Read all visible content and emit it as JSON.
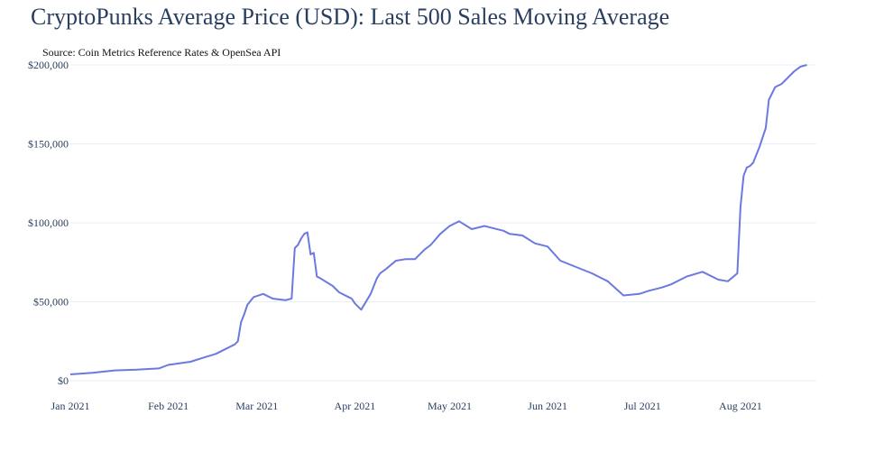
{
  "colors": {
    "line": "#6d78e0",
    "grid": "#ebeef3",
    "text": "#2a3f5f"
  },
  "chart_data": {
    "type": "line",
    "title": "CryptoPunks Average Price (USD): Last 500 Sales Moving Average",
    "subtitle": "Source: Coin Metrics Reference Rates & OpenSea API",
    "xlabel": "",
    "ylabel": "",
    "x_range": [
      "2021-01-01",
      "2021-08-25"
    ],
    "ylim": [
      0,
      200000
    ],
    "y_ticks": [
      0,
      50000,
      100000,
      150000,
      200000
    ],
    "y_tick_labels": [
      "$0",
      "$50,000",
      "$100,000",
      "$150,000",
      "$200,000"
    ],
    "x_ticks": [
      "2021-01-01",
      "2021-02-01",
      "2021-03-01",
      "2021-04-01",
      "2021-05-01",
      "2021-06-01",
      "2021-07-01",
      "2021-08-01"
    ],
    "x_tick_labels": [
      "Jan 2021",
      "Feb 2021",
      "Mar 2021",
      "Apr 2021",
      "May 2021",
      "Jun 2021",
      "Jul 2021",
      "Aug 2021"
    ],
    "grid": true,
    "legend": false,
    "series": [
      {
        "x": [
          "2021-01-01",
          "2021-01-08",
          "2021-01-15",
          "2021-01-22",
          "2021-01-29",
          "2021-02-01",
          "2021-02-08",
          "2021-02-12",
          "2021-02-16",
          "2021-02-20",
          "2021-02-22",
          "2021-02-23",
          "2021-02-24",
          "2021-02-25",
          "2021-02-26",
          "2021-02-28",
          "2021-03-03",
          "2021-03-06",
          "2021-03-10",
          "2021-03-12",
          "2021-03-13",
          "2021-03-14",
          "2021-03-15",
          "2021-03-16",
          "2021-03-17",
          "2021-03-18",
          "2021-03-19",
          "2021-03-20",
          "2021-03-21",
          "2021-03-25",
          "2021-03-27",
          "2021-03-30",
          "2021-03-31",
          "2021-04-01",
          "2021-04-03",
          "2021-04-06",
          "2021-04-08",
          "2021-04-09",
          "2021-04-11",
          "2021-04-14",
          "2021-04-17",
          "2021-04-20",
          "2021-04-23",
          "2021-04-25",
          "2021-04-28",
          "2021-05-01",
          "2021-05-04",
          "2021-05-08",
          "2021-05-12",
          "2021-05-14",
          "2021-05-18",
          "2021-05-20",
          "2021-05-24",
          "2021-05-28",
          "2021-06-01",
          "2021-06-05",
          "2021-06-10",
          "2021-06-15",
          "2021-06-20",
          "2021-06-25",
          "2021-06-30",
          "2021-07-03",
          "2021-07-07",
          "2021-07-10",
          "2021-07-15",
          "2021-07-20",
          "2021-07-25",
          "2021-07-28",
          "2021-07-31",
          "2021-08-01",
          "2021-08-02",
          "2021-08-03",
          "2021-08-04",
          "2021-08-05",
          "2021-08-07",
          "2021-08-09",
          "2021-08-10",
          "2021-08-12",
          "2021-08-14",
          "2021-08-16",
          "2021-08-18",
          "2021-08-20",
          "2021-08-22"
        ],
        "values": [
          4000,
          5000,
          6500,
          7000,
          7800,
          10000,
          12000,
          14500,
          17000,
          21000,
          23000,
          25000,
          37000,
          42000,
          48000,
          53000,
          55000,
          52000,
          51000,
          52000,
          84000,
          86000,
          90000,
          93000,
          94000,
          80000,
          81000,
          66000,
          65000,
          60000,
          56000,
          53000,
          52000,
          49000,
          45000,
          55000,
          65000,
          68000,
          71000,
          76000,
          77000,
          77000,
          83000,
          86000,
          93000,
          98000,
          101000,
          96000,
          98000,
          97000,
          95000,
          93000,
          92000,
          87000,
          85000,
          76000,
          72000,
          68000,
          63000,
          54000,
          55000,
          57000,
          59000,
          61000,
          66000,
          69000,
          64000,
          63000,
          68000,
          110000,
          130000,
          135000,
          136000,
          138000,
          148000,
          160000,
          178000,
          186000,
          188000,
          192000,
          196000,
          199000,
          200000
        ]
      }
    ]
  }
}
